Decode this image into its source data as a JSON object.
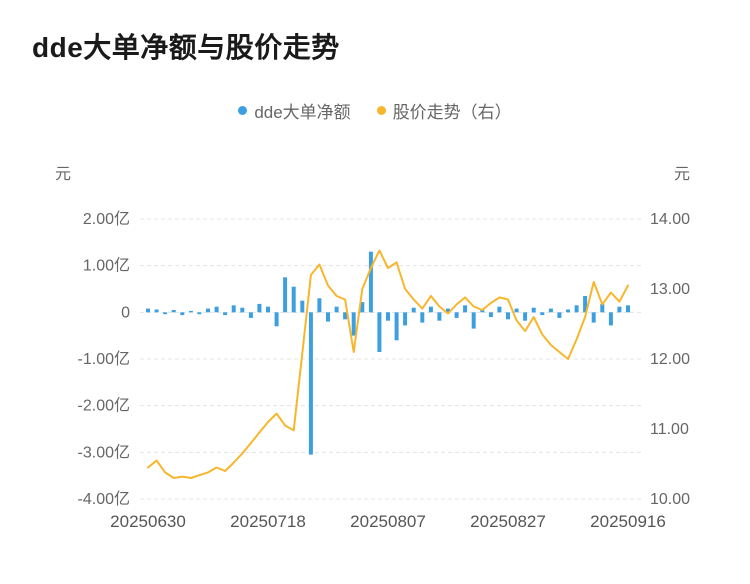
{
  "page": {
    "title": "dde大单净额与股价走势"
  },
  "legend": [
    {
      "label": "dde大单净额",
      "color": "#3d9fe0"
    },
    {
      "label": "股价走势（右）",
      "color": "#f8b62d"
    }
  ],
  "chart_data": {
    "type": "combo",
    "title": "dde大单净额与股价走势",
    "legend_position": "top",
    "grid": true,
    "x": [
      "20250630",
      "20250701",
      "20250702",
      "20250703",
      "20250704",
      "20250707",
      "20250708",
      "20250709",
      "20250710",
      "20250711",
      "20250714",
      "20250715",
      "20250716",
      "20250717",
      "20250718",
      "20250721",
      "20250722",
      "20250723",
      "20250724",
      "20250725",
      "20250728",
      "20250729",
      "20250730",
      "20250731",
      "20250801",
      "20250804",
      "20250805",
      "20250806",
      "20250807",
      "20250808",
      "20250811",
      "20250812",
      "20250813",
      "20250814",
      "20250815",
      "20250818",
      "20250819",
      "20250820",
      "20250821",
      "20250822",
      "20250825",
      "20250826",
      "20250827",
      "20250828",
      "20250829",
      "20250901",
      "20250902",
      "20250903",
      "20250904",
      "20250905",
      "20250908",
      "20250909",
      "20250910",
      "20250911",
      "20250912",
      "20250915",
      "20250916"
    ],
    "x_tick_labels": [
      "20250630",
      "20250718",
      "20250807",
      "20250827",
      "20250916"
    ],
    "left_axis": {
      "unit": "元",
      "scale": "亿",
      "min": -4,
      "max": 2,
      "tick_values": [
        2,
        1,
        0,
        -1,
        -2,
        -3,
        -4
      ],
      "tick_labels": [
        "2.00亿",
        "1.00亿",
        "0",
        "-1.00亿",
        "-2.00亿",
        "-3.00亿",
        "-4.00亿"
      ]
    },
    "right_axis": {
      "unit": "元",
      "min": 10,
      "max": 14,
      "tick_values": [
        14,
        13,
        12,
        11,
        10
      ],
      "tick_labels": [
        "14.00",
        "13.00",
        "12.00",
        "11.00",
        "10.00"
      ]
    },
    "series": [
      {
        "name": "dde大单净额",
        "type": "bar",
        "axis": "left",
        "color": "#3d9fe0",
        "unit": "亿元",
        "values": [
          0.08,
          0.06,
          -0.04,
          0.05,
          -0.06,
          0.03,
          -0.04,
          0.08,
          0.12,
          -0.06,
          0.15,
          0.1,
          -0.12,
          0.18,
          0.12,
          -0.3,
          0.75,
          0.55,
          0.25,
          -3.05,
          0.3,
          -0.2,
          0.12,
          -0.15,
          -0.5,
          0.22,
          1.3,
          -0.85,
          -0.18,
          -0.6,
          -0.28,
          0.1,
          -0.22,
          0.12,
          -0.18,
          0.08,
          -0.12,
          0.15,
          -0.35,
          0.06,
          -0.1,
          0.12,
          -0.15,
          0.08,
          -0.18,
          0.1,
          -0.06,
          0.08,
          -0.12,
          0.06,
          0.15,
          0.35,
          -0.22,
          0.18,
          -0.28,
          0.12,
          0.15
        ]
      },
      {
        "name": "股价走势（右）",
        "type": "line",
        "axis": "right",
        "color": "#f8b62d",
        "unit": "元",
        "values": [
          10.45,
          10.55,
          10.38,
          10.3,
          10.32,
          10.3,
          10.34,
          10.38,
          10.45,
          10.4,
          10.52,
          10.65,
          10.8,
          10.95,
          11.1,
          11.22,
          11.05,
          10.98,
          12.08,
          13.2,
          13.35,
          13.05,
          12.9,
          12.85,
          12.1,
          13.0,
          13.3,
          13.55,
          13.3,
          13.38,
          13.0,
          12.85,
          12.72,
          12.9,
          12.75,
          12.65,
          12.78,
          12.88,
          12.75,
          12.7,
          12.8,
          12.88,
          12.85,
          12.55,
          12.4,
          12.6,
          12.35,
          12.2,
          12.1,
          12.0,
          12.28,
          12.6,
          13.1,
          12.78,
          12.95,
          12.82,
          13.05
        ]
      }
    ]
  }
}
